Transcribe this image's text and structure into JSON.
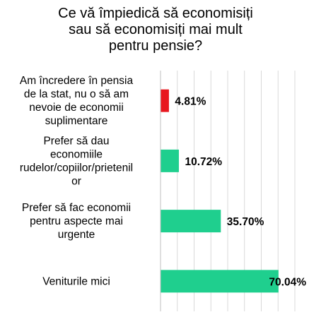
{
  "chart_data": {
    "type": "bar",
    "orientation": "horizontal",
    "title_lines": [
      "Ce vă împiedică să economisiți",
      "sau să economisiți mai mult",
      "pentru pensie?"
    ],
    "categories": [
      [
        "Am încredere în pensia",
        "de la stat, nu o să am",
        "nevoie de economii",
        "suplimentare"
      ],
      [
        "Prefer să dau",
        "economiile",
        "rudelor/copiilor/prietenil",
        "or"
      ],
      [
        "Prefer să fac economii",
        "pentru aspecte mai",
        "urgente"
      ],
      [
        "Veniturile mici"
      ]
    ],
    "values": [
      4.81,
      10.72,
      35.7,
      70.04
    ],
    "value_labels": [
      "4.81%",
      "10.72%",
      "35.70%",
      "70.04%"
    ],
    "bar_colors": [
      "#e8171f",
      "#1fcf8e",
      "#1fcf8e",
      "#1fcf8e"
    ],
    "xlim": [
      0,
      80
    ],
    "grid": true,
    "xlabel": "",
    "ylabel": ""
  }
}
